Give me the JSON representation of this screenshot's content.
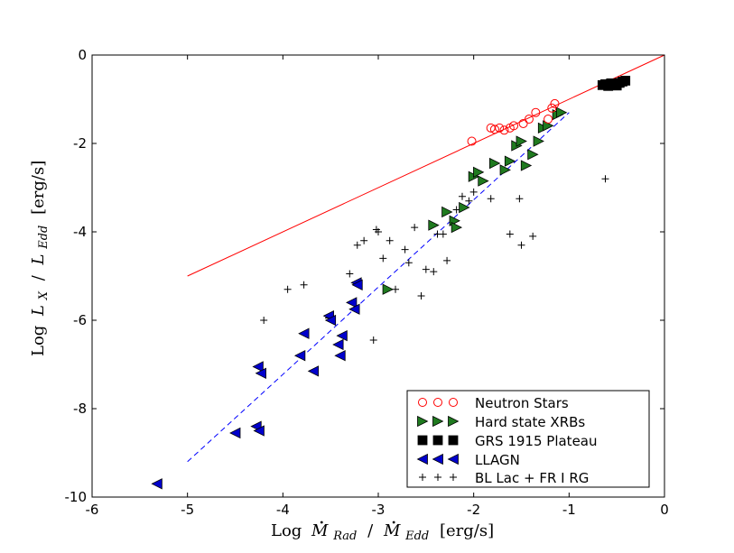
{
  "chart_data": {
    "type": "scatter",
    "title": "",
    "xlabel": "Log Ṁ_Rad / Ṁ_Edd [erg/s]",
    "ylabel": "Log L_X / L_Edd [erg/s]",
    "xlim": [
      -6,
      0
    ],
    "ylim": [
      -10,
      0
    ],
    "xticks": [
      -6,
      -5,
      -4,
      -3,
      -2,
      -1,
      0
    ],
    "yticks": [
      0,
      -2,
      -4,
      -6,
      -8,
      -10
    ],
    "axis_labels": {
      "x_log": "Log",
      "x_m": "M",
      "x_rad": "Rad",
      "x_slash": "/",
      "x_edd": "Edd",
      "x_unit": "[erg/s]",
      "y_log": "Log",
      "y_l": "L",
      "y_x": "X",
      "y_slash": "/",
      "y_edd": "Edd",
      "y_unit": "[erg/s]"
    },
    "lines": [
      {
        "name": "Neutron star relation",
        "style": "solid",
        "color": "#ff0000",
        "x": [
          -5,
          0
        ],
        "y": [
          -5,
          0
        ]
      },
      {
        "name": "Hard state / LLAGN relation",
        "style": "dashed",
        "color": "#0000ff",
        "x": [
          -5,
          -1
        ],
        "y": [
          -9.2,
          -1.3
        ]
      }
    ],
    "legend_position": "lower-right",
    "series": [
      {
        "name": "Neutron Stars",
        "marker": "open-circle",
        "color": "#ff0000",
        "x": [
          -2.02,
          -1.82,
          -1.78,
          -1.73,
          -1.68,
          -1.62,
          -1.58,
          -1.48,
          -1.42,
          -1.35,
          -1.22,
          -1.18,
          -1.15
        ],
        "y": [
          -1.95,
          -1.65,
          -1.68,
          -1.65,
          -1.7,
          -1.65,
          -1.6,
          -1.55,
          -1.45,
          -1.3,
          -1.45,
          -1.2,
          -1.1
        ]
      },
      {
        "name": "Hard state XRBs",
        "marker": "triangle-right",
        "color": "#1f7a1f",
        "x": [
          -2.9,
          -2.42,
          -2.28,
          -2.2,
          -2.18,
          -2.1,
          -2.0,
          -1.95,
          -1.9,
          -1.78,
          -1.67,
          -1.62,
          -1.55,
          -1.5,
          -1.45,
          -1.38,
          -1.32,
          -1.27,
          -1.22,
          -1.12,
          -1.08
        ],
        "y": [
          -5.3,
          -3.85,
          -3.55,
          -3.75,
          -3.9,
          -3.45,
          -2.75,
          -2.65,
          -2.85,
          -2.45,
          -2.6,
          -2.4,
          -2.05,
          -1.95,
          -2.5,
          -2.25,
          -1.95,
          -1.65,
          -1.6,
          -1.35,
          -1.3
        ]
      },
      {
        "name": "GRS 1915 Plateau",
        "marker": "square",
        "color": "#000000",
        "x": [
          -0.65,
          -0.62,
          -0.59,
          -0.56,
          -0.53,
          -0.5,
          -0.47,
          -0.44,
          -0.41
        ],
        "y": [
          -0.68,
          -0.66,
          -0.7,
          -0.64,
          -0.67,
          -0.69,
          -0.63,
          -0.6,
          -0.58
        ]
      },
      {
        "name": "LLAGN",
        "marker": "triangle-left",
        "color": "#0000cc",
        "x": [
          -5.32,
          -4.5,
          -4.28,
          -4.25,
          -4.26,
          -4.23,
          -3.82,
          -3.78,
          -3.68,
          -3.52,
          -3.5,
          -3.42,
          -3.4,
          -3.38,
          -3.28,
          -3.25,
          -3.23,
          -3.22
        ],
        "y": [
          -9.7,
          -8.55,
          -8.4,
          -8.5,
          -7.05,
          -7.2,
          -6.8,
          -6.3,
          -7.15,
          -5.9,
          -6.0,
          -6.55,
          -6.8,
          -6.35,
          -5.6,
          -5.75,
          -5.15,
          -5.2
        ]
      },
      {
        "name": "BL Lac + FR I RG",
        "marker": "plus",
        "color": "#000000",
        "x": [
          -4.2,
          -3.95,
          -3.78,
          -3.52,
          -3.3,
          -3.22,
          -3.15,
          -3.05,
          -3.02,
          -3.0,
          -2.95,
          -2.88,
          -2.82,
          -2.72,
          -2.68,
          -2.62,
          -2.55,
          -2.5,
          -2.42,
          -2.38,
          -2.32,
          -2.28,
          -2.18,
          -2.12,
          -2.05,
          -2.0,
          -1.82,
          -1.62,
          -1.52,
          -1.5,
          -1.38,
          -0.62
        ],
        "y": [
          -6.0,
          -5.3,
          -5.2,
          -5.95,
          -4.95,
          -4.3,
          -4.2,
          -6.45,
          -3.95,
          -4.0,
          -4.6,
          -4.2,
          -5.3,
          -4.4,
          -4.7,
          -3.9,
          -5.45,
          -4.85,
          -4.9,
          -4.05,
          -4.05,
          -4.65,
          -3.5,
          -3.2,
          -3.3,
          -3.1,
          -3.25,
          -4.05,
          -3.25,
          -4.3,
          -4.1,
          -2.8
        ]
      }
    ]
  }
}
